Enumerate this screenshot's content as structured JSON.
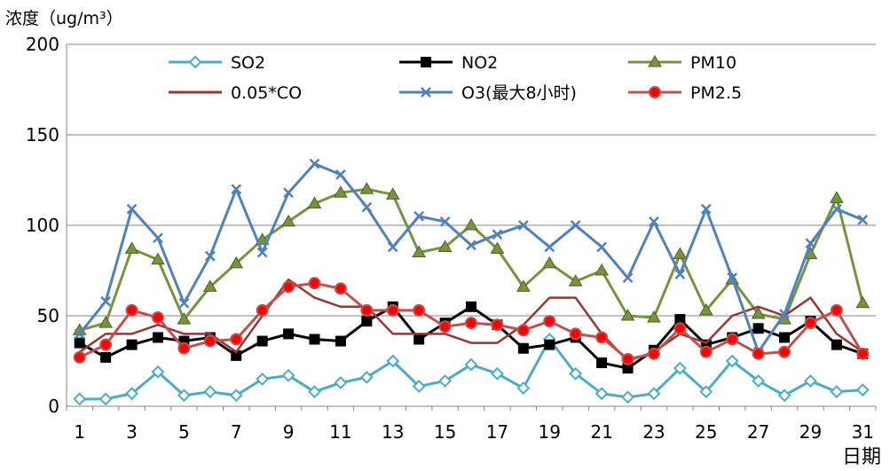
{
  "chart_data": {
    "type": "line",
    "ylabel": "浓度（ug/m³）",
    "xlabel": "日期",
    "ylim": [
      0,
      200
    ],
    "yticks": [
      0,
      50,
      100,
      150,
      200
    ],
    "xlim": [
      1,
      31
    ],
    "x": [
      1,
      2,
      3,
      4,
      5,
      6,
      7,
      8,
      9,
      10,
      11,
      12,
      13,
      14,
      15,
      16,
      17,
      18,
      19,
      20,
      21,
      22,
      23,
      24,
      25,
      26,
      27,
      28,
      29,
      30,
      31
    ],
    "xtick_labels": [
      "1",
      "3",
      "5",
      "7",
      "9",
      "11",
      "13",
      "15",
      "17",
      "19",
      "21",
      "23",
      "25",
      "27",
      "29",
      "31"
    ],
    "grid": "horizontal",
    "legend": "top",
    "series": [
      {
        "name": "SO2",
        "color": "#4bacc6",
        "marker": "diamond",
        "values": [
          4,
          4,
          7,
          19,
          6,
          8,
          6,
          15,
          17,
          8,
          13,
          16,
          25,
          11,
          14,
          23,
          18,
          10,
          37,
          18,
          7,
          5,
          7,
          21,
          8,
          25,
          14,
          6,
          14,
          8,
          9
        ]
      },
      {
        "name": "NO2",
        "color": "#000000",
        "marker": "square",
        "values": [
          35,
          27,
          34,
          38,
          36,
          38,
          28,
          36,
          40,
          37,
          36,
          47,
          55,
          37,
          46,
          55,
          45,
          32,
          34,
          38,
          24,
          21,
          31,
          48,
          34,
          38,
          43,
          38,
          47,
          34,
          29
        ]
      },
      {
        "name": "PM10",
        "color": "#77933c",
        "marker": "triangle",
        "values": [
          42,
          46,
          87,
          81,
          48,
          66,
          79,
          92,
          102,
          112,
          118,
          120,
          117,
          85,
          88,
          100,
          87,
          66,
          79,
          69,
          75,
          50,
          49,
          84,
          53,
          70,
          51,
          48,
          84,
          115,
          57
        ]
      },
      {
        "name": "0.05*CO",
        "color": "#953735",
        "marker": "none",
        "values": [
          30,
          40,
          40,
          45,
          40,
          40,
          30,
          50,
          70,
          60,
          55,
          55,
          40,
          40,
          40,
          35,
          35,
          45,
          60,
          60,
          40,
          25,
          30,
          40,
          35,
          50,
          55,
          50,
          60,
          40,
          30
        ]
      },
      {
        "name": "O3(最大8小时)",
        "color": "#4f81bd",
        "marker": "x",
        "values": [
          40,
          58,
          109,
          93,
          57,
          83,
          120,
          85,
          118,
          134,
          128,
          110,
          88,
          105,
          102,
          89,
          95,
          100,
          88,
          100,
          88,
          71,
          102,
          73,
          109,
          71,
          30,
          51,
          90,
          109,
          103
        ]
      },
      {
        "name": "PM2.5",
        "color": "#c0504d",
        "marker": "circle",
        "values": [
          27,
          34,
          53,
          49,
          32,
          36,
          37,
          53,
          66,
          68,
          65,
          53,
          53,
          53,
          44,
          46,
          45,
          42,
          47,
          40,
          38,
          26,
          29,
          43,
          30,
          37,
          29,
          30,
          46,
          53,
          29
        ]
      }
    ]
  }
}
